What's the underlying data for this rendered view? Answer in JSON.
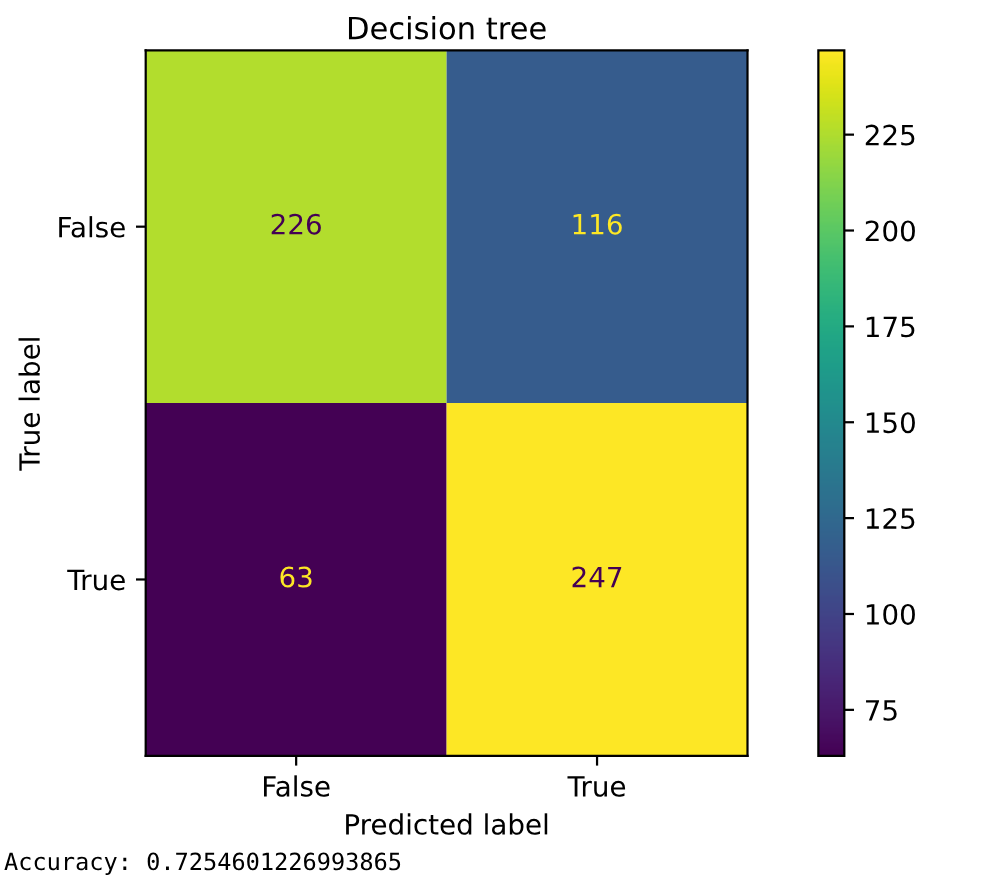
{
  "chart_data": {
    "type": "heatmap",
    "title": "Decision tree",
    "xlabel": "Predicted label",
    "ylabel": "True label",
    "categories": [
      "False",
      "True"
    ],
    "y_categories": [
      "False",
      "True"
    ],
    "cells": [
      [
        226,
        116
      ],
      [
        63,
        247
      ]
    ],
    "clim": [
      63,
      247
    ],
    "cticks": [
      75,
      100,
      125,
      150,
      175,
      200,
      225
    ],
    "data_labels": true,
    "annotations": [
      "Accuracy: 0.7254601226993865"
    ]
  }
}
